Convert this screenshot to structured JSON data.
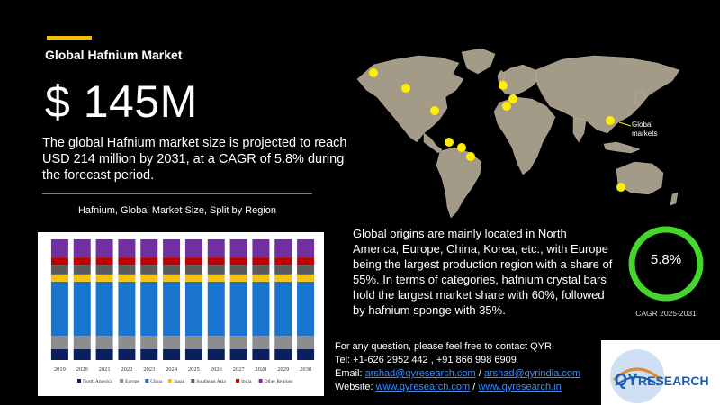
{
  "header": {
    "title": "Global Hafnium Market",
    "big_value": "$ 145M",
    "summary": "The global Hafnium market size is projected to reach USD 214 million by 2031, at a CAGR of 5.8% during the forecast period."
  },
  "colors": {
    "accent": "#f2c200",
    "marker": "#ffee00",
    "land": "#a39a87",
    "donut": "#44d62c"
  },
  "map": {
    "callout_label_line1": "Global",
    "callout_label_line2": "markets"
  },
  "description": "Global origins are mainly located in North America, Europe, China, Korea, etc., with Europe being the largest production region with a share of 55%. In terms of categories, hafnium crystal bars hold the largest market share with 60%, followed by hafnium sponge with 35%.",
  "cagr": {
    "value": "5.8%",
    "label": "CAGR 2025-2031"
  },
  "contact": {
    "line1": "For any question, please feel free to contact QYR",
    "tel": "Tel: +1-626 2952 442 , +91 866 998 6909",
    "email_prefix": "Email: ",
    "email1": "arshad@qyresearch.com",
    "email_sep": " / ",
    "email2": "arshad@qyrindia.com",
    "website_prefix": "Website: ",
    "website1": "www.qyresearch.com",
    "website_sep": " / ",
    "website2": "www.qyresearch.in"
  },
  "logo": {
    "text_q": "QY",
    "text_rest": "RESEARCH"
  },
  "chart_data": {
    "type": "bar",
    "stacked": true,
    "normalized": true,
    "title": "Hafnium, Global Market Size, Split by Region",
    "categories": [
      "2019",
      "2020",
      "2021",
      "2022",
      "2023",
      "2024",
      "2025",
      "2026",
      "2027",
      "2028",
      "2029",
      "2030"
    ],
    "ylim": [
      0,
      100
    ],
    "grid": false,
    "legend_position": "bottom",
    "series": [
      {
        "name": "North America",
        "color": "#0b1f5c",
        "values": [
          9,
          9,
          9,
          9,
          9,
          9,
          9,
          9,
          9,
          9,
          9,
          9
        ]
      },
      {
        "name": "Europe",
        "color": "#8c8c8c",
        "values": [
          11,
          11,
          11,
          11,
          11,
          11,
          11,
          11,
          11,
          11,
          11,
          11
        ]
      },
      {
        "name": "China",
        "color": "#1874cd",
        "values": [
          45,
          45,
          45,
          45,
          45,
          45,
          45,
          45,
          45,
          45,
          45,
          45
        ]
      },
      {
        "name": "Japan",
        "color": "#f5c211",
        "values": [
          6,
          6,
          6,
          6,
          6,
          6,
          6,
          6,
          6,
          6,
          6,
          6
        ]
      },
      {
        "name": "Southeast Asia",
        "color": "#5b5b5b",
        "values": [
          8,
          8,
          8,
          8,
          8,
          8,
          8,
          8,
          8,
          8,
          8,
          8
        ]
      },
      {
        "name": "India",
        "color": "#c00000",
        "values": [
          6,
          6,
          6,
          6,
          6,
          6,
          6,
          6,
          6,
          6,
          6,
          6
        ]
      },
      {
        "name": "Other Regions",
        "color": "#7030a0",
        "values": [
          15,
          15,
          15,
          15,
          15,
          15,
          15,
          15,
          15,
          15,
          15,
          15
        ]
      }
    ]
  }
}
